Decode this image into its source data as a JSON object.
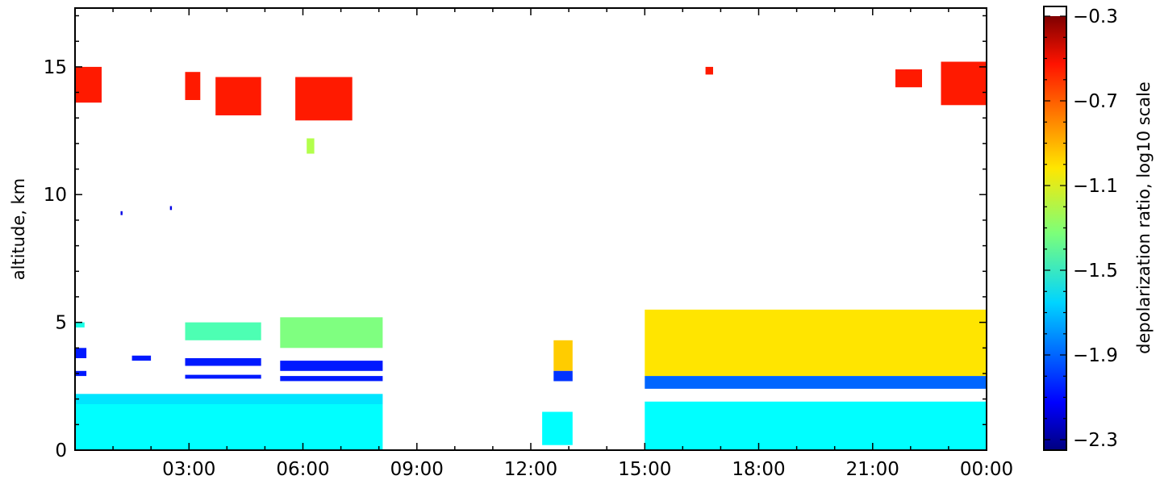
{
  "chart_data": {
    "type": "heatmap",
    "title": "",
    "xlabel": "",
    "ylabel": "altitude, km",
    "x_tick_labels": [
      "03:00",
      "06:00",
      "09:00",
      "12:00",
      "15:00",
      "18:00",
      "21:00",
      "00:00"
    ],
    "x_ticks_hours": [
      3,
      6,
      9,
      12,
      15,
      18,
      21,
      24
    ],
    "xlim_hours": [
      0,
      24
    ],
    "y_ticks": [
      0,
      5,
      10,
      15
    ],
    "ylim": [
      0,
      17.3
    ],
    "colorbar": {
      "label": "depolarization ratio, log10 scale",
      "tick_labels": [
        "−0.3",
        "−0.7",
        "−1.1",
        "−1.5",
        "−1.9",
        "−2.3"
      ],
      "ticks": [
        -0.3,
        -0.7,
        -1.1,
        -1.5,
        -1.9,
        -2.3
      ],
      "range": [
        -2.3,
        -0.3
      ],
      "colormap": "jet"
    },
    "cloud_regions": [
      {
        "t0": 0.0,
        "t1": 0.7,
        "z0": 13.6,
        "z1": 15.0,
        "value": -0.6
      },
      {
        "t0": 2.9,
        "t1": 3.3,
        "z0": 13.7,
        "z1": 14.8,
        "value": -0.6
      },
      {
        "t0": 3.7,
        "t1": 4.9,
        "z0": 13.1,
        "z1": 14.6,
        "value": -0.6
      },
      {
        "t0": 5.8,
        "t1": 7.3,
        "z0": 12.9,
        "z1": 14.6,
        "value": -0.6
      },
      {
        "t0": 6.1,
        "t1": 6.3,
        "z0": 11.6,
        "z1": 12.2,
        "value": -1.2
      },
      {
        "t0": 16.6,
        "t1": 16.8,
        "z0": 14.7,
        "z1": 15.0,
        "value": -0.6
      },
      {
        "t0": 21.6,
        "t1": 22.3,
        "z0": 14.2,
        "z1": 14.9,
        "value": -0.6
      },
      {
        "t0": 22.8,
        "t1": 24.0,
        "z0": 13.5,
        "z1": 15.2,
        "value": -0.6
      },
      {
        "t0": 1.2,
        "t1": 1.25,
        "z0": 9.2,
        "z1": 9.35,
        "value": -2.1
      },
      {
        "t0": 2.5,
        "t1": 2.55,
        "z0": 9.4,
        "z1": 9.55,
        "value": -2.1
      },
      {
        "t0": 0.0,
        "t1": 8.1,
        "z0": 0.0,
        "z1": 1.8,
        "value": -1.55
      },
      {
        "t0": 0.0,
        "t1": 8.1,
        "z0": 1.8,
        "z1": 2.2,
        "value": -1.6
      },
      {
        "t0": 0.0,
        "t1": 0.25,
        "z0": 4.8,
        "z1": 5.0,
        "value": -1.5
      },
      {
        "t0": 2.9,
        "t1": 4.9,
        "z0": 4.3,
        "z1": 5.0,
        "value": -1.4
      },
      {
        "t0": 5.4,
        "t1": 8.1,
        "z0": 4.0,
        "z1": 5.2,
        "value": -1.3
      },
      {
        "t0": 0.0,
        "t1": 0.3,
        "z0": 3.6,
        "z1": 4.0,
        "value": -2.0
      },
      {
        "t0": 0.0,
        "t1": 0.3,
        "z0": 2.9,
        "z1": 3.1,
        "value": -2.0
      },
      {
        "t0": 1.5,
        "t1": 2.0,
        "z0": 3.5,
        "z1": 3.7,
        "value": -2.0
      },
      {
        "t0": 2.9,
        "t1": 4.9,
        "z0": 3.3,
        "z1": 3.6,
        "value": -2.0
      },
      {
        "t0": 5.4,
        "t1": 8.1,
        "z0": 3.1,
        "z1": 3.5,
        "value": -2.0
      },
      {
        "t0": 2.9,
        "t1": 4.9,
        "z0": 2.8,
        "z1": 2.95,
        "value": -2.0
      },
      {
        "t0": 5.4,
        "t1": 8.1,
        "z0": 2.7,
        "z1": 2.9,
        "value": -2.0
      },
      {
        "t0": 12.6,
        "t1": 13.1,
        "z0": 3.1,
        "z1": 4.3,
        "value": -0.95
      },
      {
        "t0": 12.6,
        "t1": 13.1,
        "z0": 2.7,
        "z1": 3.1,
        "value": -1.95
      },
      {
        "t0": 12.3,
        "t1": 13.1,
        "z0": 0.2,
        "z1": 1.5,
        "value": -1.55
      },
      {
        "t0": 15.0,
        "t1": 24.0,
        "z0": 2.9,
        "z1": 5.5,
        "value": -1.0
      },
      {
        "t0": 15.0,
        "t1": 24.0,
        "z0": 2.4,
        "z1": 2.9,
        "value": -1.85
      },
      {
        "t0": 15.0,
        "t1": 24.0,
        "z0": 0.0,
        "z1": 1.9,
        "value": -1.55
      }
    ]
  }
}
